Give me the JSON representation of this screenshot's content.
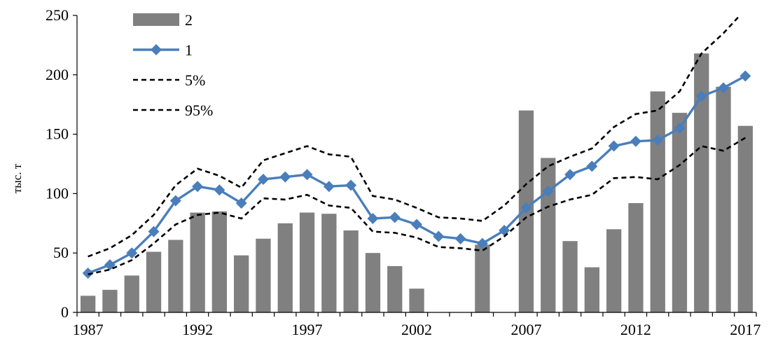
{
  "chart_data": {
    "type": "bar",
    "x": [
      1987,
      1988,
      1989,
      1990,
      1991,
      1992,
      1993,
      1994,
      1995,
      1996,
      1997,
      1998,
      1999,
      2000,
      2001,
      2002,
      2003,
      2004,
      2005,
      2006,
      2007,
      2008,
      2009,
      2010,
      2011,
      2012,
      2013,
      2014,
      2015,
      2016,
      2017
    ],
    "x_ticks": [
      "1987",
      "1992",
      "1997",
      "2002",
      "2007",
      "2012",
      "2017"
    ],
    "y_ticks": [
      "0",
      "50",
      "100",
      "150",
      "200",
      "250"
    ],
    "ylim": [
      0,
      250
    ],
    "ylabel": "тыс. т",
    "xlabel": "",
    "title": "",
    "legend_position": "top-left",
    "grid": false,
    "series": [
      {
        "name": "2",
        "type": "bar",
        "color": "#808080",
        "values": [
          14,
          19,
          31,
          51,
          61,
          84,
          85,
          48,
          62,
          75,
          84,
          83,
          69,
          50,
          39,
          20,
          null,
          null,
          57,
          null,
          170,
          130,
          60,
          38,
          70,
          92,
          186,
          168,
          218,
          190,
          157
        ]
      },
      {
        "name": "1",
        "type": "line",
        "color": "#4a7ebb",
        "marker": "diamond",
        "values": [
          33,
          40,
          50,
          68,
          94,
          106,
          103,
          92,
          112,
          114,
          116,
          106,
          107,
          79,
          80,
          74,
          64,
          62,
          58,
          69,
          88,
          102,
          116,
          123,
          140,
          144,
          145,
          155,
          182,
          189,
          199
        ]
      },
      {
        "name": "5%",
        "type": "line",
        "color": "#000000",
        "dash": "dashed",
        "values": [
          47,
          54,
          65,
          82,
          107,
          121,
          115,
          105,
          128,
          134,
          140,
          133,
          131,
          98,
          95,
          88,
          80,
          79,
          77,
          90,
          108,
          123,
          131,
          138,
          156,
          167,
          170,
          186,
          218,
          235,
          255
        ]
      },
      {
        "name": "95%",
        "type": "line",
        "color": "#000000",
        "dash": "dashed",
        "values": [
          32,
          36,
          44,
          58,
          74,
          82,
          84,
          79,
          96,
          95,
          99,
          90,
          88,
          68,
          67,
          63,
          55,
          54,
          52,
          64,
          80,
          89,
          95,
          99,
          113,
          114,
          112,
          124,
          140,
          136,
          147
        ]
      }
    ]
  }
}
